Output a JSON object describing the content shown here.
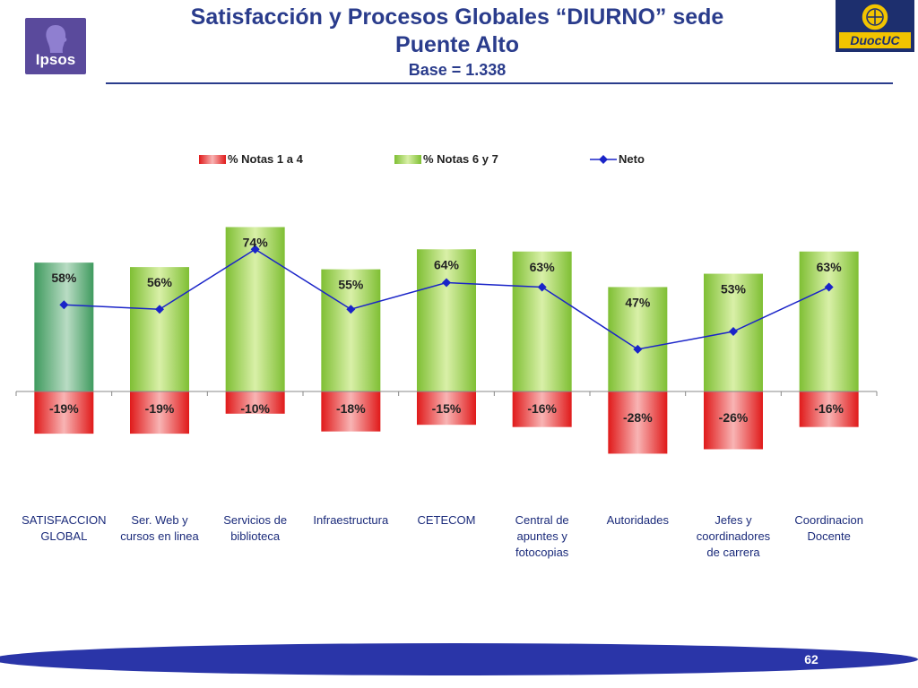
{
  "header": {
    "title_line1": "Satisfacción y Procesos Globales “DIURNO” sede",
    "title_line2": "Puente Alto",
    "base": "Base = 1.338",
    "logo_left": "Ipsos",
    "logo_right": "DuocUC"
  },
  "footer": {
    "page_number": "62"
  },
  "colors": {
    "bar_low": "#e8201f",
    "bar_high": "#8cc63e",
    "bar_first": "#3f9a5e",
    "net_line": "#1a24c8"
  },
  "chart_data": {
    "type": "bar",
    "categories": [
      [
        "SATISFACCION",
        "GLOBAL"
      ],
      [
        "Ser. Web y",
        "cursos en linea"
      ],
      [
        "Servicios de",
        "biblioteca"
      ],
      [
        "Infraestructura"
      ],
      [
        "CETECOM"
      ],
      [
        "Central de",
        "apuntes y",
        "fotocopias"
      ],
      [
        "Autoridades"
      ],
      [
        "Jefes y",
        "coordinadores",
        "de carrera"
      ],
      [
        "Coordinacion",
        "Docente"
      ]
    ],
    "series": [
      {
        "name": "% Notas 1 a 4",
        "values": [
          -19,
          -19,
          -10,
          -18,
          -15,
          -16,
          -28,
          -26,
          -16
        ],
        "labels": [
          "-19%",
          "-19%",
          "-10%",
          "-18%",
          "-15%",
          "-16%",
          "-28%",
          "-26%",
          "-16%"
        ]
      },
      {
        "name": "% Notas 6 y 7",
        "values": [
          58,
          56,
          74,
          55,
          64,
          63,
          47,
          53,
          63
        ],
        "labels": [
          "58%",
          "56%",
          "74%",
          "55%",
          "64%",
          "63%",
          "47%",
          "53%",
          "63%"
        ]
      },
      {
        "name": "Neto",
        "values": [
          39,
          37,
          64,
          37,
          49,
          47,
          19,
          27,
          47
        ]
      }
    ],
    "legend_position": "top",
    "ylim": [
      -40,
      80
    ]
  }
}
